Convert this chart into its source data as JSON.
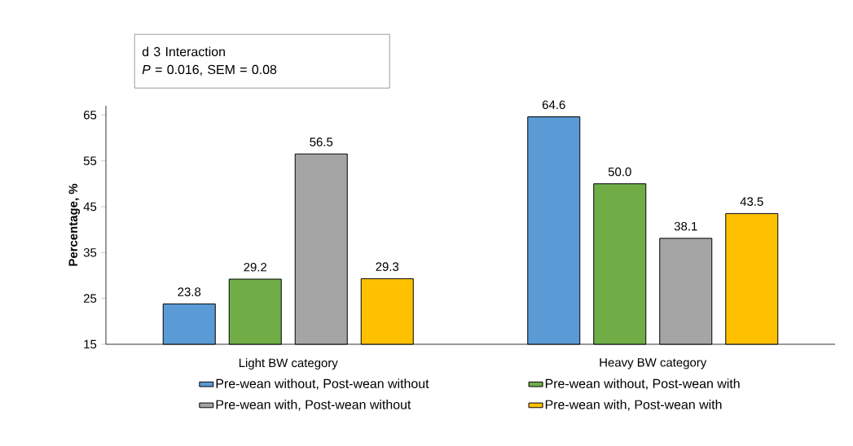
{
  "chart_data": {
    "type": "bar",
    "ylabel": "Percentage, %",
    "categories": [
      "Light BW category",
      "Heavy BW category"
    ],
    "series": [
      {
        "name": "Pre-wean without, Post-wean without",
        "color": "#5b9bd5",
        "values": [
          23.8,
          64.6
        ],
        "value_labels": [
          "23.8",
          "64.6"
        ]
      },
      {
        "name": "Pre-wean without, Post-wean with",
        "color": "#70ad47",
        "values": [
          29.2,
          50.0
        ],
        "value_labels": [
          "29.2",
          "50.0"
        ]
      },
      {
        "name": "Pre-wean with, Post-wean without",
        "color": "#a5a5a5",
        "values": [
          56.5,
          38.1
        ],
        "value_labels": [
          "56.5",
          "38.1"
        ]
      },
      {
        "name": "Pre-wean with, Post-wean with",
        "color": "#ffc000",
        "values": [
          29.3,
          43.5
        ],
        "value_labels": [
          "29.3",
          "43.5"
        ]
      }
    ],
    "ylim": [
      15,
      67
    ],
    "yticks": [
      15,
      25,
      35,
      45,
      55,
      65
    ],
    "legend": "bottom",
    "grid": false,
    "annotations": [
      "d 3 Interaction",
      "*P* = 0.016, SEM = 0.08"
    ]
  }
}
